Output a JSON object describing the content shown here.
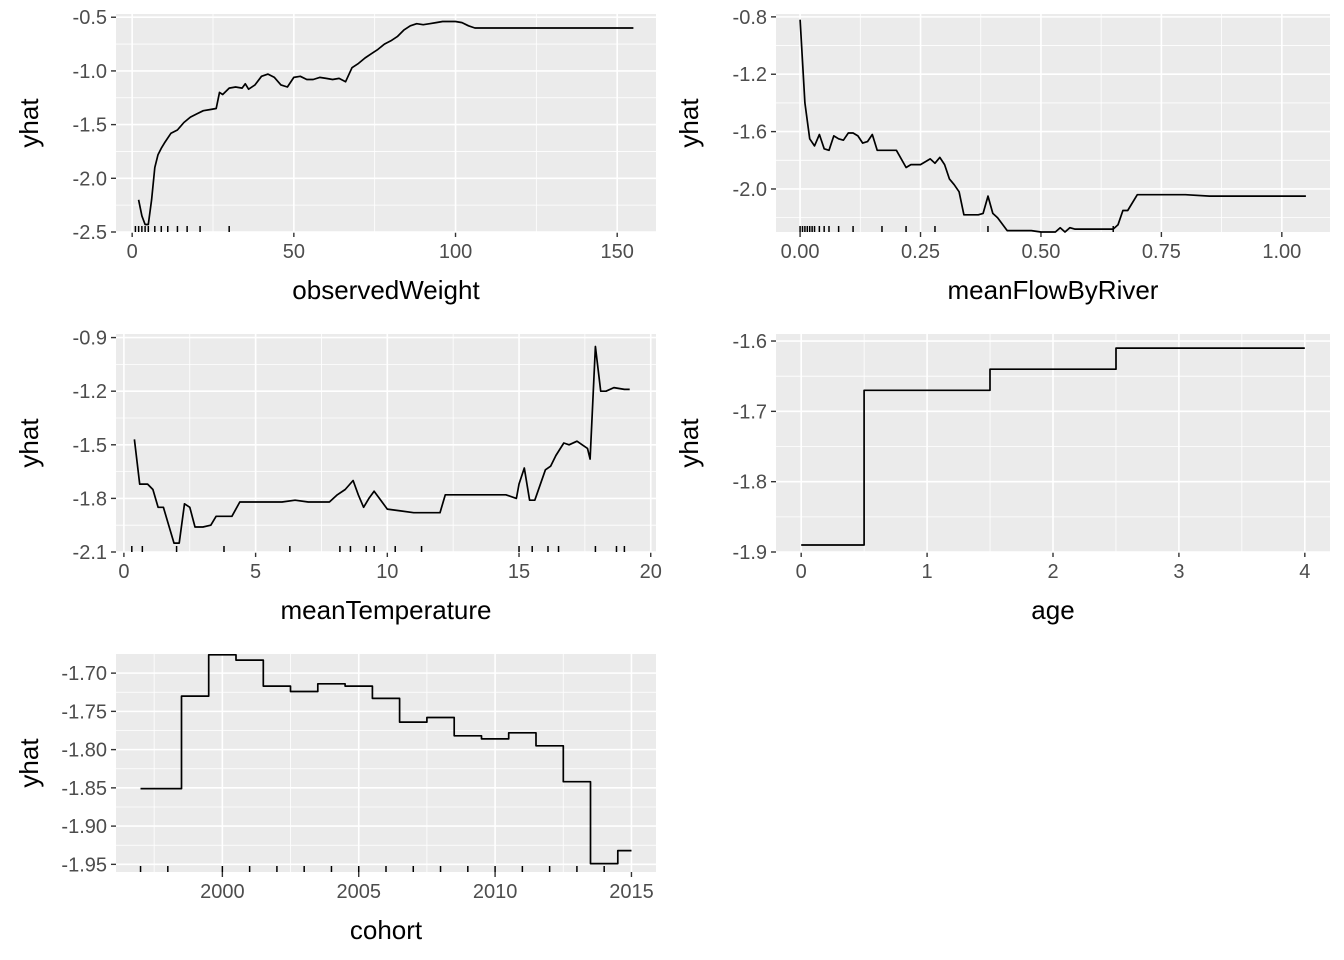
{
  "chart_data": [
    {
      "type": "line",
      "xlabel": "observedWeight",
      "ylabel": "yhat",
      "xlim": [
        -5,
        162
      ],
      "ylim": [
        -2.5,
        -0.47
      ],
      "xticks": [
        0,
        50,
        100,
        150
      ],
      "xtick_labels": [
        "0",
        "50",
        "100",
        "150"
      ],
      "yticks": [
        -2.5,
        -2.0,
        -1.5,
        -1.0,
        -0.5
      ],
      "ytick_labels": [
        "-2.5",
        "-2.0",
        "-1.5",
        "-1.0",
        "-0.5"
      ],
      "rug": [
        1,
        2,
        3,
        4,
        5,
        7,
        9,
        11,
        14,
        17,
        21,
        30
      ],
      "x": [
        2,
        3,
        4,
        5,
        6,
        7,
        8,
        9,
        10,
        12,
        14,
        16,
        18,
        20,
        22,
        24,
        26,
        27,
        28,
        30,
        32,
        34,
        35,
        36,
        38,
        40,
        42,
        44,
        46,
        48,
        50,
        52,
        54,
        56,
        58,
        60,
        62,
        64,
        66,
        68,
        70,
        72,
        74,
        76,
        78,
        80,
        82,
        84,
        86,
        88,
        90,
        92,
        94,
        96,
        98,
        100,
        102,
        104,
        106,
        110,
        120,
        130,
        140,
        150,
        155
      ],
      "y": [
        -2.2,
        -2.35,
        -2.43,
        -2.43,
        -2.2,
        -1.9,
        -1.78,
        -1.72,
        -1.67,
        -1.58,
        -1.55,
        -1.48,
        -1.43,
        -1.4,
        -1.37,
        -1.36,
        -1.35,
        -1.2,
        -1.22,
        -1.16,
        -1.15,
        -1.16,
        -1.12,
        -1.17,
        -1.13,
        -1.05,
        -1.03,
        -1.06,
        -1.13,
        -1.15,
        -1.06,
        -1.05,
        -1.08,
        -1.08,
        -1.06,
        -1.07,
        -1.08,
        -1.07,
        -1.1,
        -0.97,
        -0.93,
        -0.88,
        -0.84,
        -0.8,
        -0.75,
        -0.72,
        -0.68,
        -0.62,
        -0.58,
        -0.56,
        -0.57,
        -0.56,
        -0.55,
        -0.54,
        -0.54,
        -0.54,
        -0.55,
        -0.58,
        -0.6,
        -0.6,
        -0.6,
        -0.6,
        -0.6,
        -0.6,
        -0.6
      ]
    },
    {
      "type": "line",
      "xlabel": "meanFlowByRiver",
      "ylabel": "yhat",
      "xlim": [
        -0.05,
        1.1
      ],
      "ylim": [
        -2.3,
        -0.78
      ],
      "xticks": [
        0,
        0.25,
        0.5,
        0.75,
        1.0
      ],
      "xtick_labels": [
        "0.00",
        "0.25",
        "0.50",
        "0.75",
        "1.00"
      ],
      "yticks": [
        -2.0,
        -1.6,
        -1.2,
        -0.8
      ],
      "ytick_labels": [
        "-2.0",
        "-1.6",
        "-1.2",
        "-0.8"
      ],
      "rug": [
        0.0,
        0.005,
        0.01,
        0.015,
        0.02,
        0.025,
        0.03,
        0.04,
        0.05,
        0.06,
        0.08,
        0.11,
        0.17,
        0.22,
        0.28,
        0.39,
        0.65
      ],
      "x": [
        0,
        0.01,
        0.02,
        0.03,
        0.04,
        0.05,
        0.06,
        0.07,
        0.08,
        0.09,
        0.1,
        0.11,
        0.12,
        0.13,
        0.14,
        0.15,
        0.16,
        0.17,
        0.18,
        0.2,
        0.22,
        0.23,
        0.25,
        0.27,
        0.28,
        0.29,
        0.3,
        0.31,
        0.32,
        0.33,
        0.34,
        0.36,
        0.37,
        0.38,
        0.39,
        0.4,
        0.41,
        0.43,
        0.45,
        0.48,
        0.5,
        0.52,
        0.53,
        0.54,
        0.55,
        0.56,
        0.57,
        0.6,
        0.63,
        0.65,
        0.66,
        0.67,
        0.68,
        0.7,
        0.75,
        0.8,
        0.85,
        0.9,
        0.95,
        1.0,
        1.05
      ],
      "y": [
        -0.82,
        -1.4,
        -1.65,
        -1.7,
        -1.62,
        -1.72,
        -1.73,
        -1.63,
        -1.65,
        -1.66,
        -1.61,
        -1.61,
        -1.63,
        -1.68,
        -1.67,
        -1.62,
        -1.73,
        -1.73,
        -1.73,
        -1.73,
        -1.85,
        -1.83,
        -1.83,
        -1.79,
        -1.82,
        -1.78,
        -1.83,
        -1.93,
        -1.97,
        -2.02,
        -2.18,
        -2.18,
        -2.18,
        -2.17,
        -2.05,
        -2.17,
        -2.2,
        -2.29,
        -2.29,
        -2.29,
        -2.3,
        -2.3,
        -2.3,
        -2.27,
        -2.3,
        -2.27,
        -2.28,
        -2.28,
        -2.28,
        -2.28,
        -2.25,
        -2.15,
        -2.15,
        -2.04,
        -2.04,
        -2.04,
        -2.05,
        -2.05,
        -2.05,
        -2.05,
        -2.05
      ]
    },
    {
      "type": "line",
      "xlabel": "meanTemperature",
      "ylabel": "yhat",
      "xlim": [
        -0.3,
        20.2
      ],
      "ylim": [
        -2.1,
        -0.88
      ],
      "xticks": [
        0,
        5,
        10,
        15,
        20
      ],
      "xtick_labels": [
        "0",
        "5",
        "10",
        "15",
        "20"
      ],
      "yticks": [
        -2.1,
        -1.8,
        -1.5,
        -1.2,
        -0.9
      ],
      "ytick_labels": [
        "-2.1",
        "-1.8",
        "-1.5",
        "-1.2",
        "-0.9"
      ],
      "rug": [
        0.3,
        0.7,
        2.0,
        3.8,
        6.3,
        8.2,
        8.6,
        9.2,
        9.5,
        10.3,
        11.3,
        15.0,
        15.5,
        16.1,
        16.5,
        17.9,
        18.7,
        19.0
      ],
      "x": [
        0.4,
        0.6,
        0.9,
        1.1,
        1.3,
        1.5,
        1.7,
        1.9,
        2.1,
        2.3,
        2.5,
        2.7,
        3.0,
        3.3,
        3.5,
        3.8,
        4.1,
        4.4,
        5.0,
        5.5,
        6.0,
        6.5,
        7.0,
        7.5,
        7.8,
        8.1,
        8.4,
        8.7,
        8.9,
        9.1,
        9.3,
        9.5,
        9.7,
        10.0,
        10.5,
        11.0,
        11.5,
        12.0,
        12.2,
        12.5,
        13.0,
        13.5,
        14.0,
        14.5,
        14.9,
        15.0,
        15.2,
        15.4,
        15.6,
        16.0,
        16.2,
        16.4,
        16.7,
        16.9,
        17.2,
        17.4,
        17.6,
        17.7,
        17.9,
        18.1,
        18.3,
        18.6,
        19.0,
        19.2
      ],
      "y": [
        -1.47,
        -1.72,
        -1.72,
        -1.75,
        -1.85,
        -1.85,
        -1.95,
        -2.05,
        -2.05,
        -1.83,
        -1.85,
        -1.96,
        -1.96,
        -1.95,
        -1.9,
        -1.9,
        -1.9,
        -1.82,
        -1.82,
        -1.82,
        -1.82,
        -1.81,
        -1.82,
        -1.82,
        -1.82,
        -1.78,
        -1.75,
        -1.7,
        -1.78,
        -1.85,
        -1.8,
        -1.76,
        -1.8,
        -1.86,
        -1.87,
        -1.88,
        -1.88,
        -1.88,
        -1.78,
        -1.78,
        -1.78,
        -1.78,
        -1.78,
        -1.78,
        -1.8,
        -1.72,
        -1.63,
        -1.81,
        -1.81,
        -1.64,
        -1.62,
        -1.56,
        -1.49,
        -1.5,
        -1.48,
        -1.5,
        -1.52,
        -1.58,
        -0.95,
        -1.2,
        -1.2,
        -1.18,
        -1.19,
        -1.19
      ]
    },
    {
      "type": "line",
      "xlabel": "age",
      "ylabel": "yhat",
      "xlim": [
        -0.2,
        4.2
      ],
      "ylim": [
        -1.9,
        -1.59
      ],
      "xticks": [
        0,
        1,
        2,
        3,
        4
      ],
      "xtick_labels": [
        "0",
        "1",
        "2",
        "3",
        "4"
      ],
      "yticks": [
        -1.9,
        -1.8,
        -1.7,
        -1.6
      ],
      "ytick_labels": [
        "-1.9",
        "-1.8",
        "-1.7",
        "-1.6"
      ],
      "rug": [],
      "x": [
        0,
        0.5,
        0.5,
        1.5,
        1.5,
        2.5,
        2.5,
        4
      ],
      "y": [
        -1.89,
        -1.89,
        -1.67,
        -1.67,
        -1.64,
        -1.64,
        -1.61,
        -1.61
      ]
    },
    {
      "type": "line",
      "xlabel": "cohort",
      "ylabel": "yhat",
      "xlim": [
        1996.1,
        2015.9
      ],
      "ylim": [
        -1.96,
        -1.675
      ],
      "xticks": [
        2000,
        2005,
        2010,
        2015
      ],
      "xtick_labels": [
        "2000",
        "2005",
        "2010",
        "2015"
      ],
      "yticks": [
        -1.95,
        -1.9,
        -1.85,
        -1.8,
        -1.75,
        -1.7
      ],
      "ytick_labels": [
        "-1.95",
        "-1.90",
        "-1.85",
        "-1.80",
        "-1.75",
        "-1.70"
      ],
      "rug": [
        1997,
        1998,
        2000,
        2001,
        2002,
        2003,
        2004,
        2005,
        2006,
        2007,
        2008,
        2009,
        2010,
        2011,
        2012,
        2013,
        2014
      ],
      "x": [
        1997,
        1998.5,
        1998.5,
        1999.5,
        1999.5,
        2000.5,
        2000.5,
        2001.5,
        2001.5,
        2002.5,
        2002.5,
        2003.5,
        2003.5,
        2004.5,
        2004.5,
        2005.5,
        2005.5,
        2006.5,
        2006.5,
        2007.5,
        2007.5,
        2008.5,
        2008.5,
        2009.5,
        2009.5,
        2010.5,
        2010.5,
        2011.5,
        2011.5,
        2012.5,
        2012.5,
        2013.5,
        2013.5,
        2014.5,
        2014.5,
        2015
      ],
      "y": [
        -1.851,
        -1.851,
        -1.73,
        -1.73,
        -1.676,
        -1.676,
        -1.683,
        -1.683,
        -1.717,
        -1.717,
        -1.724,
        -1.724,
        -1.714,
        -1.714,
        -1.717,
        -1.717,
        -1.733,
        -1.733,
        -1.764,
        -1.764,
        -1.758,
        -1.758,
        -1.782,
        -1.782,
        -1.786,
        -1.786,
        -1.778,
        -1.778,
        -1.795,
        -1.795,
        -1.842,
        -1.842,
        -1.949,
        -1.949,
        -1.932,
        -1.932
      ]
    }
  ]
}
